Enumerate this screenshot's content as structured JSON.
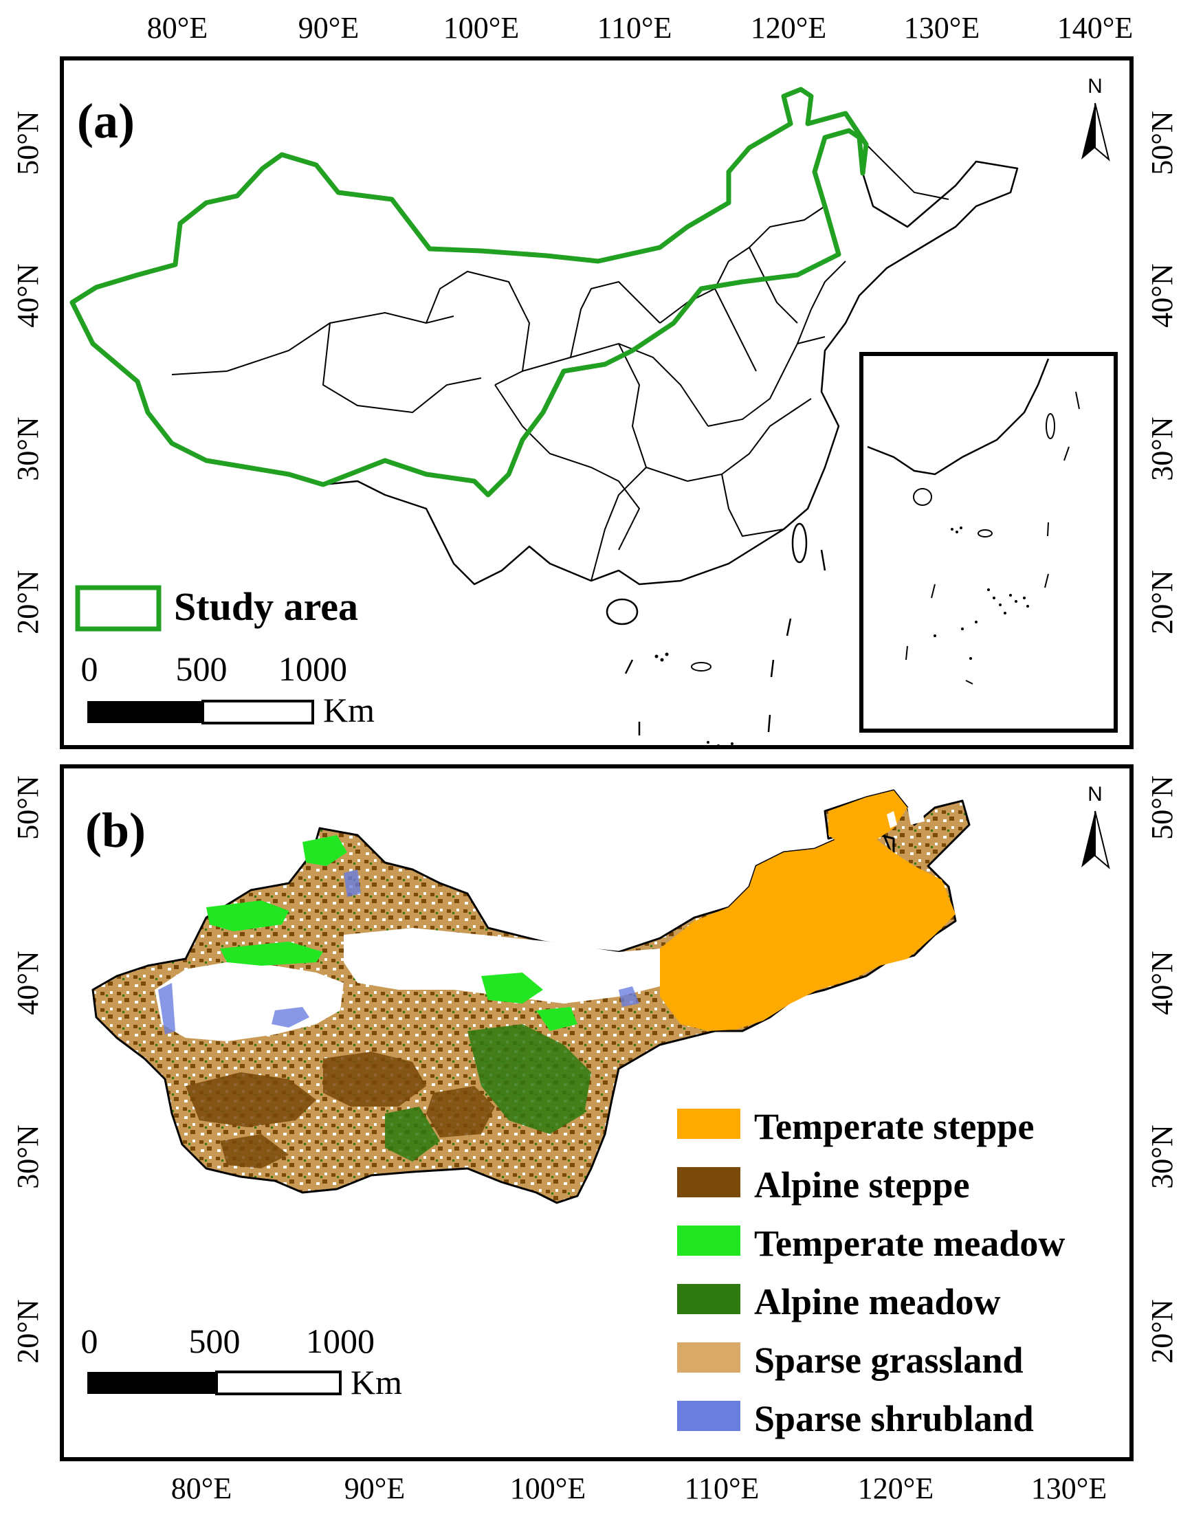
{
  "panel_a": {
    "label": "(a)",
    "top_lon_ticks": [
      "80°E",
      "90°E",
      "100°E",
      "110°E",
      "120°E",
      "130°E",
      "140°E"
    ],
    "lat_ticks": [
      "50°N",
      "40°N",
      "30°N",
      "20°N"
    ],
    "legend_label": "Study area",
    "scale_ticks": [
      "0",
      "500",
      "1000"
    ],
    "scale_unit": "Km",
    "north": "N"
  },
  "panel_b": {
    "label": "(b)",
    "bottom_lon_ticks": [
      "80°E",
      "90°E",
      "100°E",
      "110°E",
      "120°E",
      "130°E"
    ],
    "lat_ticks": [
      "50°N",
      "40°N",
      "30°N",
      "20°N"
    ],
    "scale_ticks": [
      "0",
      "500",
      "1000"
    ],
    "scale_unit": "Km",
    "north": "N",
    "legend": [
      {
        "label": "Temperate steppe",
        "color": "#ffaa00"
      },
      {
        "label": "Alpine steppe",
        "color": "#7a4a0a"
      },
      {
        "label": "Temperate meadow",
        "color": "#22e622"
      },
      {
        "label": "Alpine meadow",
        "color": "#2e7a10"
      },
      {
        "label": "Sparse grassland",
        "color": "#d8aa66"
      },
      {
        "label": "Sparse shrubland",
        "color": "#6a7ee0"
      }
    ]
  },
  "colors": {
    "study_area_outline": "#22a022"
  }
}
